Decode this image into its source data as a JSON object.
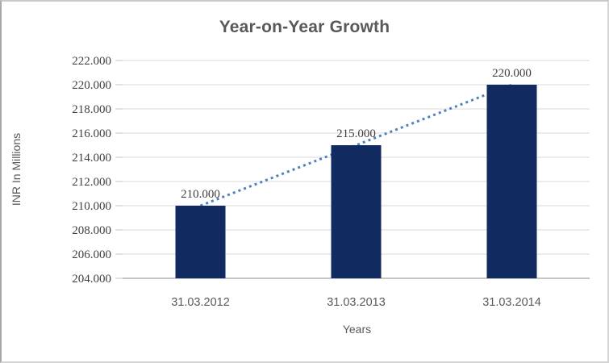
{
  "frame": {
    "background": "#ffffff",
    "border_color": "#d4d4d4"
  },
  "chart_data": {
    "type": "bar",
    "title": "Year-on-Year Growth",
    "xlabel": "Years",
    "ylabel": "INR In Millions",
    "categories": [
      "31.03.2012",
      "31.03.2013",
      "31.03.2014"
    ],
    "values": [
      210,
      215,
      220
    ],
    "value_labels": [
      "210.000",
      "215.000",
      "220.000"
    ],
    "ylim": [
      204,
      222
    ],
    "ytick_step": 2,
    "ytick_labels": [
      "204.000",
      "206.000",
      "208.000",
      "210.000",
      "212.000",
      "214.000",
      "216.000",
      "218.000",
      "220.000",
      "222.000"
    ],
    "grid": true,
    "legend": null,
    "trendline": {
      "type": "linear",
      "style": "dotted",
      "color": "#4f81bd"
    },
    "colors": {
      "bar": "#112a5f",
      "gridline": "#d9d9d9",
      "axis_line": "#c6c6c6",
      "tick_mark": "#c6c6c6",
      "serif_text": "#404040",
      "sans_text": "#595959",
      "title_text": "#595959"
    }
  }
}
